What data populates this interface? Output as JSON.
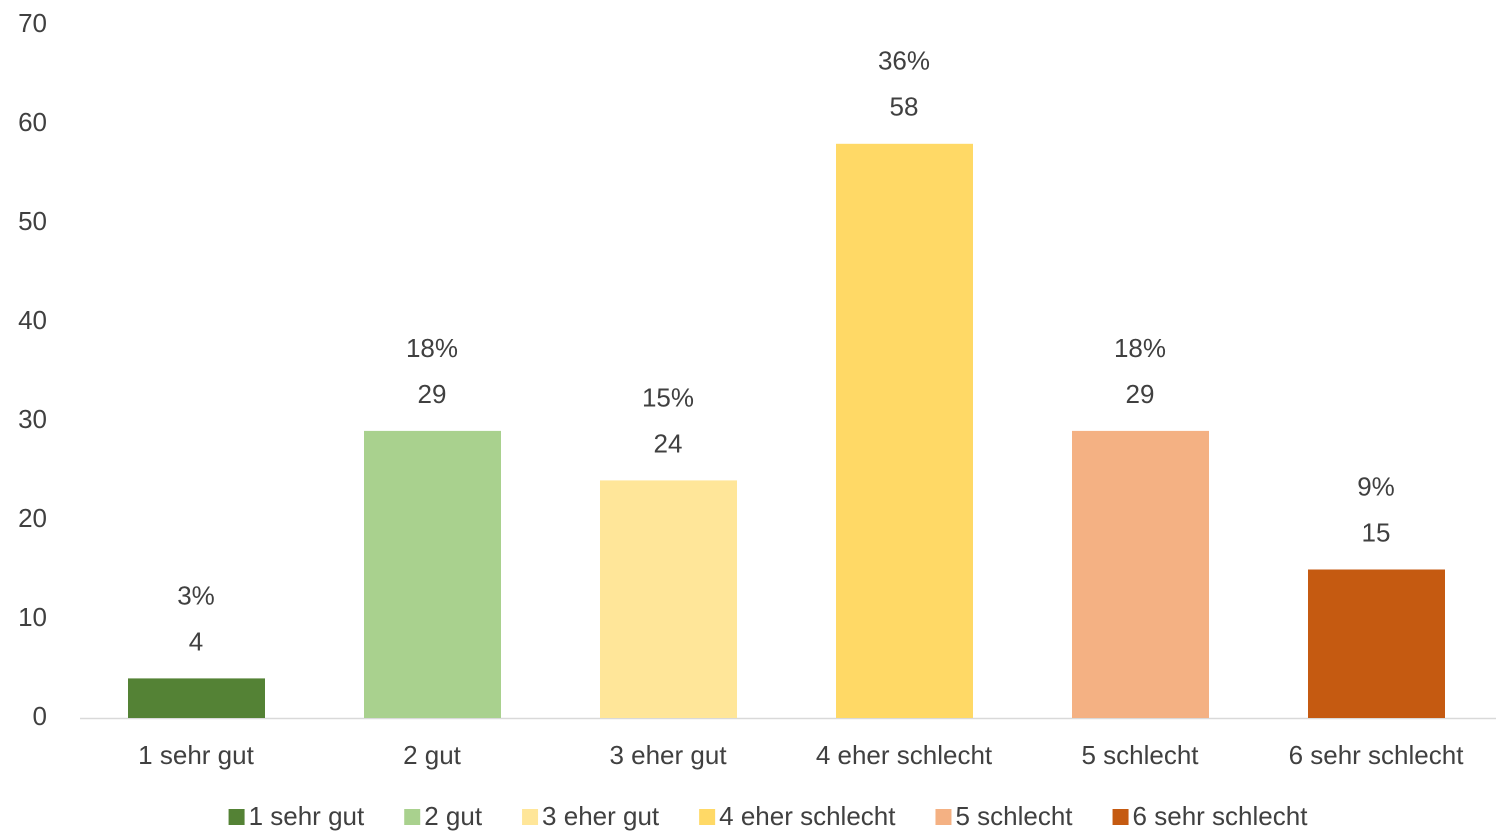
{
  "chart_data": {
    "type": "bar",
    "categories": [
      "1 sehr gut",
      "2 gut",
      "3 eher gut",
      "4 eher schlecht",
      "5 schlecht",
      "6 sehr schlecht"
    ],
    "values": [
      4,
      29,
      24,
      58,
      29,
      15
    ],
    "percent_labels": [
      "3%",
      "18%",
      "15%",
      "36%",
      "18%",
      "9%"
    ],
    "colors": [
      "#548235",
      "#a9d18e",
      "#ffe699",
      "#ffd966",
      "#f4b183",
      "#c55a11"
    ],
    "ylim": [
      0,
      70
    ],
    "yticks": [
      0,
      10,
      20,
      30,
      40,
      50,
      60,
      70
    ],
    "grid": false,
    "legend": "bottom"
  }
}
